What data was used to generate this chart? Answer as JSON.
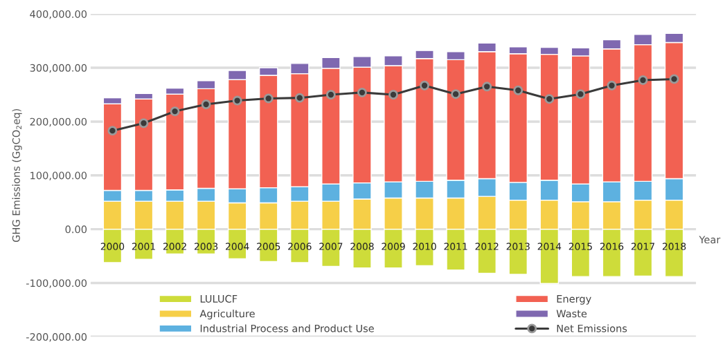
{
  "chart_data": {
    "type": "bar",
    "stacked": true,
    "xlabel": "Year",
    "ylabel": "GHG Emissions (GgCO$_{2}$eq)",
    "categories": [
      "2000",
      "2001",
      "2002",
      "2003",
      "2004",
      "2005",
      "2006",
      "2007",
      "2008",
      "2009",
      "2010",
      "2011",
      "2012",
      "2013",
      "2014",
      "2015",
      "2016",
      "2017",
      "2018"
    ],
    "series": [
      {
        "name": "LULUCF",
        "color": "#cedc3a",
        "values": [
          -62000,
          -56000,
          -46000,
          -46000,
          -55000,
          -60000,
          -62000,
          -69000,
          -72000,
          -72000,
          -68000,
          -76000,
          -82000,
          -84000,
          -101000,
          -88000,
          -88000,
          -87000,
          -88000
        ]
      },
      {
        "name": "Agriculture",
        "color": "#f6cf48",
        "values": [
          52000,
          52000,
          52000,
          52000,
          49000,
          49000,
          52000,
          52000,
          56000,
          58000,
          58000,
          58000,
          61000,
          54000,
          54000,
          51000,
          51000,
          54000,
          54000
        ]
      },
      {
        "name": "Industrial Process and Product Use",
        "color": "#5db1e0",
        "values": [
          20000,
          20000,
          21000,
          24000,
          26000,
          28000,
          27000,
          32000,
          30000,
          30000,
          31000,
          33000,
          33000,
          33000,
          37000,
          33000,
          37000,
          35000,
          40000
        ]
      },
      {
        "name": "Energy",
        "color": "#f26152",
        "values": [
          161000,
          170000,
          178000,
          185000,
          203000,
          209000,
          210000,
          215000,
          215000,
          216000,
          228000,
          224000,
          236000,
          239000,
          234000,
          238000,
          247000,
          254000,
          253000
        ]
      },
      {
        "name": "Waste",
        "color": "#7f68b0",
        "values": [
          11000,
          10000,
          11000,
          15000,
          17000,
          14000,
          19000,
          20000,
          20000,
          18000,
          15000,
          15000,
          16000,
          13000,
          13000,
          15000,
          17000,
          19000,
          17000
        ]
      },
      {
        "name": "Net Emissions",
        "type": "line",
        "color": "#3a3a3a",
        "marker": "circle",
        "values": [
          183000,
          197000,
          219000,
          232000,
          239000,
          243000,
          244000,
          250000,
          254000,
          250000,
          267000,
          251000,
          265000,
          258000,
          242000,
          251000,
          267000,
          277000,
          279000
        ]
      }
    ],
    "ylim": [
      -200000,
      400000
    ],
    "yticks": [
      {
        "value": -200000,
        "label": "-200,000.00"
      },
      {
        "value": -100000,
        "label": "-100,000.00"
      },
      {
        "value": 0,
        "label": "0.00"
      },
      {
        "value": 100000,
        "label": "100,000.00"
      },
      {
        "value": 200000,
        "label": "200,000.00"
      },
      {
        "value": 300000,
        "label": "300,000.00"
      },
      {
        "value": 400000,
        "label": "400,000.00"
      }
    ],
    "grid": "y",
    "legend": "bottom"
  }
}
